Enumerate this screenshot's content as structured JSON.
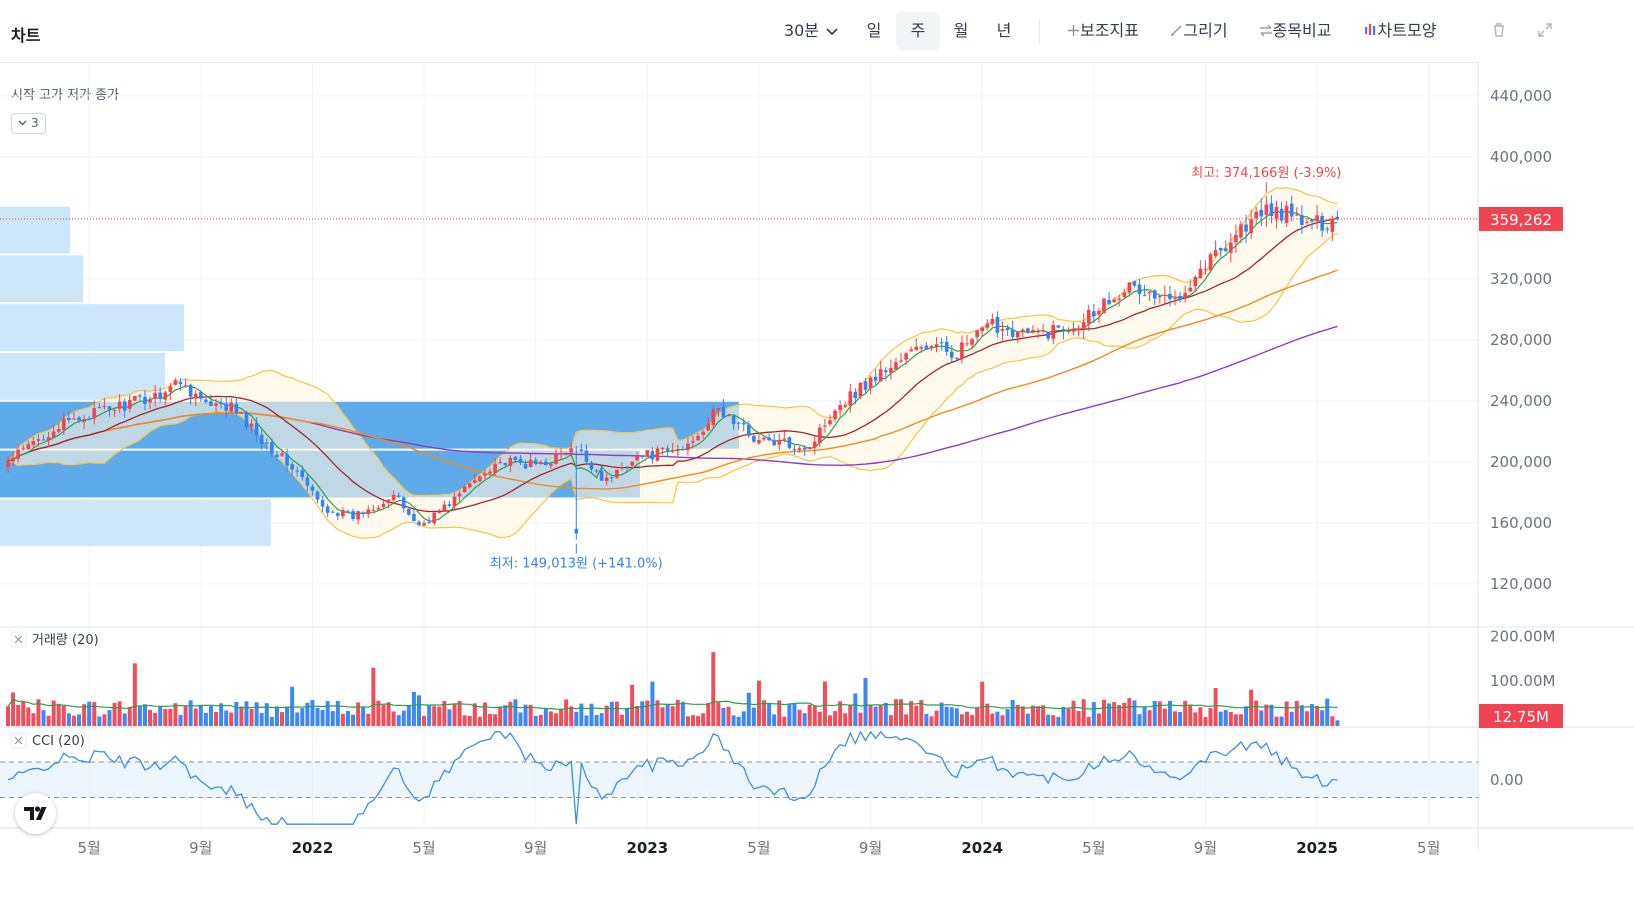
{
  "header": {
    "title": "차트",
    "interval": "30분",
    "periods": [
      "일",
      "주",
      "월",
      "년"
    ],
    "selected_period": "주",
    "tools": [
      "보조지표",
      "그리기",
      "종목비교",
      "차트모양"
    ]
  },
  "legend": {
    "ohlc_label": "시작 고가 저가 종가",
    "collapse_count": "3"
  },
  "panes": {
    "volume_label": "거래량 (20)",
    "cci_label": "CCI (20)"
  },
  "colors": {
    "up": "#f04452",
    "down": "#3182f6",
    "ma5": "#26a34a",
    "ma20": "#a3262d",
    "ma60": "#f28b1e",
    "ma120": "#8e3fbd",
    "bollinger": "#f6c44b",
    "volume_ma": "#26a34a",
    "cci": "#3d8fe0",
    "profile": "#c9e3f8",
    "profile_poc": "#56a6e8"
  },
  "chart_data": {
    "type": "candlestick",
    "interval": "weekly",
    "x_tick_labels": [
      "5월",
      "9월",
      "2022",
      "5월",
      "9월",
      "2023",
      "5월",
      "9월",
      "2024",
      "5월",
      "9월",
      "2025",
      "5월"
    ],
    "y_tick_labels": [
      "440,000",
      "400,000",
      "320,000",
      "280,000",
      "240,000",
      "200,000",
      "160,000",
      "120,000"
    ],
    "ylim": [
      93000,
      453000
    ],
    "current_price": 359262,
    "current_price_label": "359,262",
    "max_annotation": "최고: 374,166원 (-3.9%)",
    "min_annotation": "최저: 149,013원 (+141.0%)",
    "max_price": 374166,
    "min_price": 149013,
    "close_anchors": [
      [
        0,
        200000
      ],
      [
        9,
        222000
      ],
      [
        17,
        232000
      ],
      [
        28,
        242000
      ],
      [
        34,
        253000
      ],
      [
        40,
        235000
      ],
      [
        44,
        236000
      ],
      [
        51,
        212000
      ],
      [
        57,
        193000
      ],
      [
        62,
        170000
      ],
      [
        68,
        164000
      ],
      [
        76,
        178000
      ],
      [
        81,
        158000
      ],
      [
        86,
        170000
      ],
      [
        96,
        200000
      ],
      [
        104,
        198000
      ],
      [
        112,
        208000
      ],
      [
        118,
        187000
      ],
      [
        123,
        203000
      ],
      [
        133,
        208000
      ],
      [
        140,
        234000
      ],
      [
        148,
        214000
      ],
      [
        158,
        210000
      ],
      [
        163,
        236000
      ],
      [
        171,
        256000
      ],
      [
        180,
        276000
      ],
      [
        187,
        272000
      ],
      [
        194,
        290000
      ],
      [
        202,
        283000
      ],
      [
        210,
        290000
      ],
      [
        220,
        315000
      ],
      [
        229,
        305000
      ],
      [
        236,
        330000
      ],
      [
        243,
        353000
      ],
      [
        249,
        366000
      ],
      [
        257,
        355000
      ],
      [
        262,
        360000
      ]
    ],
    "volume_ylim": [
      0,
      210000000
    ],
    "volume_tick_labels": [
      "200.00M",
      "100.00M"
    ],
    "current_volume_label": "12.75M",
    "cci_ylim": [
      -260,
      280
    ],
    "cci_tick_label": "0.00",
    "cci_levels": [
      100,
      -100
    ],
    "volume_profile_bins": [
      {
        "price_low": 336000,
        "price_high": 368000,
        "volume": 70
      },
      {
        "price_low": 304000,
        "price_high": 336000,
        "volume": 83
      },
      {
        "price_low": 272000,
        "price_high": 304000,
        "volume": 184
      },
      {
        "price_low": 240000,
        "price_high": 272000,
        "volume": 165
      },
      {
        "price_low": 208000,
        "price_high": 240000,
        "volume": 739
      },
      {
        "price_low": 176000,
        "price_high": 208000,
        "volume": 640
      },
      {
        "price_low": 144000,
        "price_high": 176000,
        "volume": 271
      }
    ],
    "moving_averages": [
      5,
      20,
      60,
      120
    ],
    "bollinger_period": 20
  }
}
